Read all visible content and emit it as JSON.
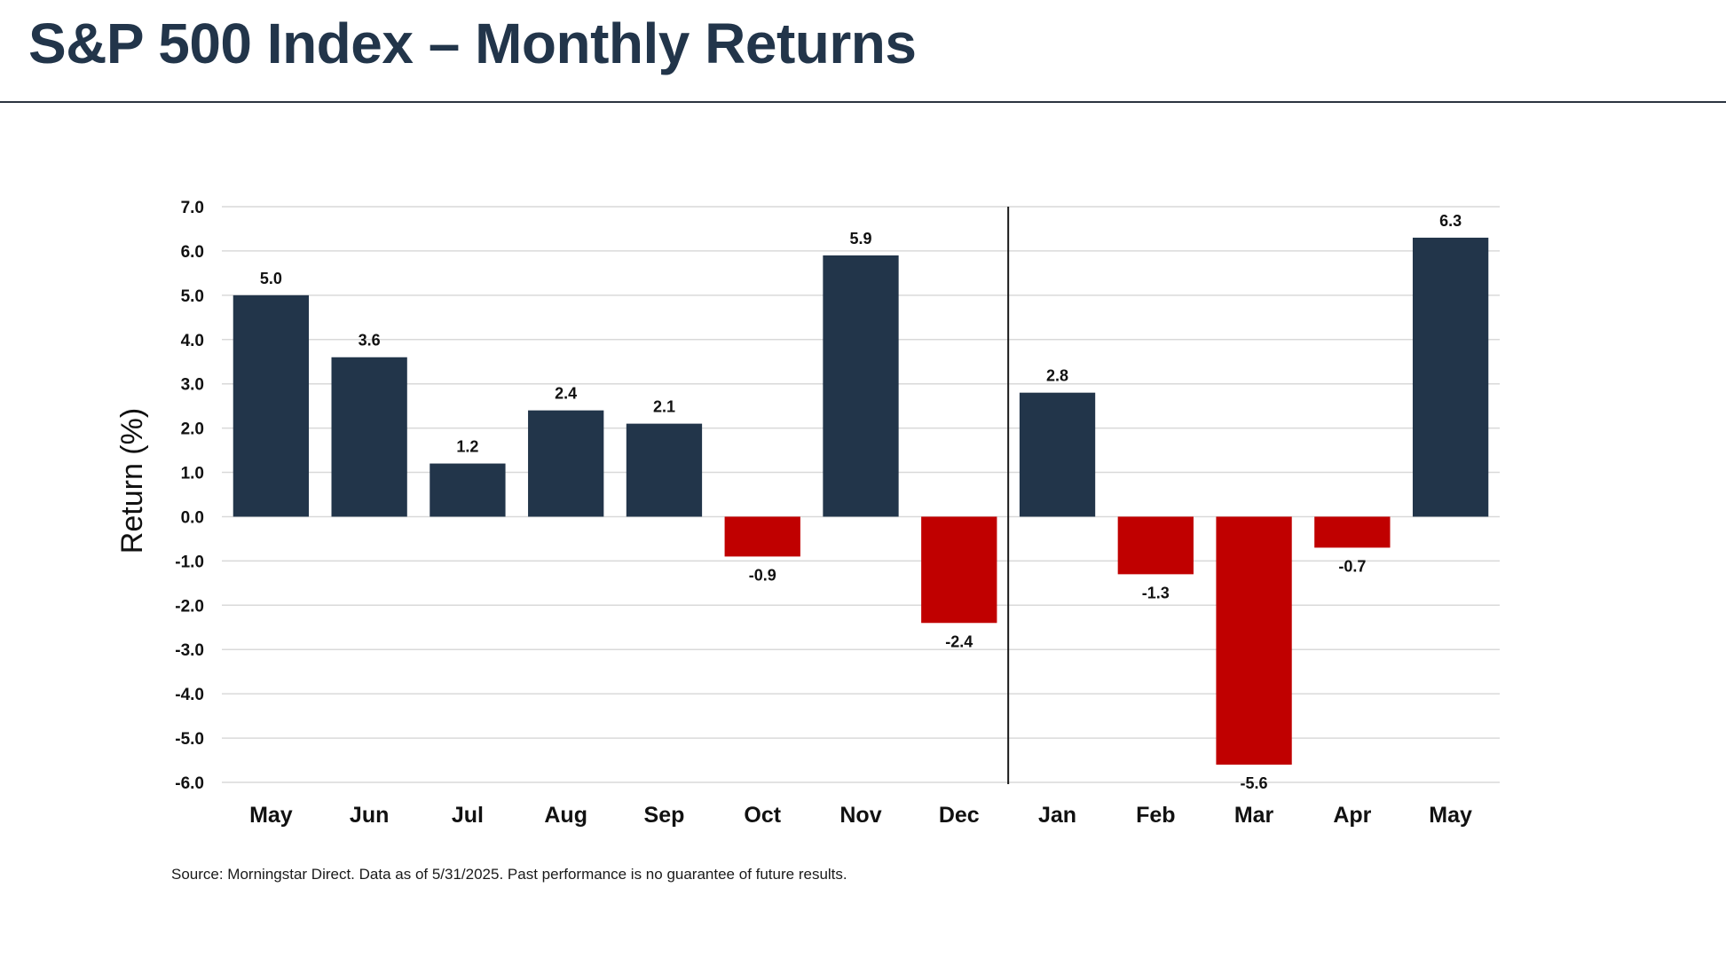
{
  "page": {
    "title": "S&P 500 Index – Monthly Returns",
    "source": "Source: Morningstar Direct. Data as of 5/31/2025. Past performance is no guarantee of future results."
  },
  "chart_data": {
    "type": "bar",
    "title": "S&P 500 Index – Monthly Returns",
    "xlabel": "",
    "ylabel": "Return (%)",
    "ylim": [
      -6.0,
      7.0
    ],
    "y_ticks": [
      7.0,
      6.0,
      5.0,
      4.0,
      3.0,
      2.0,
      1.0,
      0.0,
      -1.0,
      -2.0,
      -3.0,
      -4.0,
      -5.0,
      -6.0
    ],
    "y_tick_labels": [
      "7.0",
      "6.0",
      "5.0",
      "4.0",
      "3.0",
      "2.0",
      "1.0",
      "0.0",
      "-1.0",
      "-2.0",
      "-3.0",
      "-4.0",
      "-5.0",
      "-6.0"
    ],
    "categories": [
      "May",
      "Jun",
      "Jul",
      "Aug",
      "Sep",
      "Oct",
      "Nov",
      "Dec",
      "Jan",
      "Feb",
      "Mar",
      "Apr",
      "May"
    ],
    "values": [
      5.0,
      3.6,
      1.2,
      2.4,
      2.1,
      -0.9,
      5.9,
      -2.4,
      2.8,
      -1.3,
      -5.6,
      -0.7,
      6.3
    ],
    "data_labels": [
      "5.0",
      "3.6",
      "1.2",
      "2.4",
      "2.1",
      "-0.9",
      "5.9",
      "-2.4",
      "2.8",
      "-1.3",
      "-5.6",
      "-0.7",
      "6.3"
    ],
    "grid": true,
    "legend": "none",
    "year_divider_before_category_index": 8,
    "colors": {
      "positive": "#22354a",
      "negative": "#c00000",
      "grid": "#d9d9d9",
      "divider": "#1a1a1a",
      "text": "#111111"
    }
  }
}
